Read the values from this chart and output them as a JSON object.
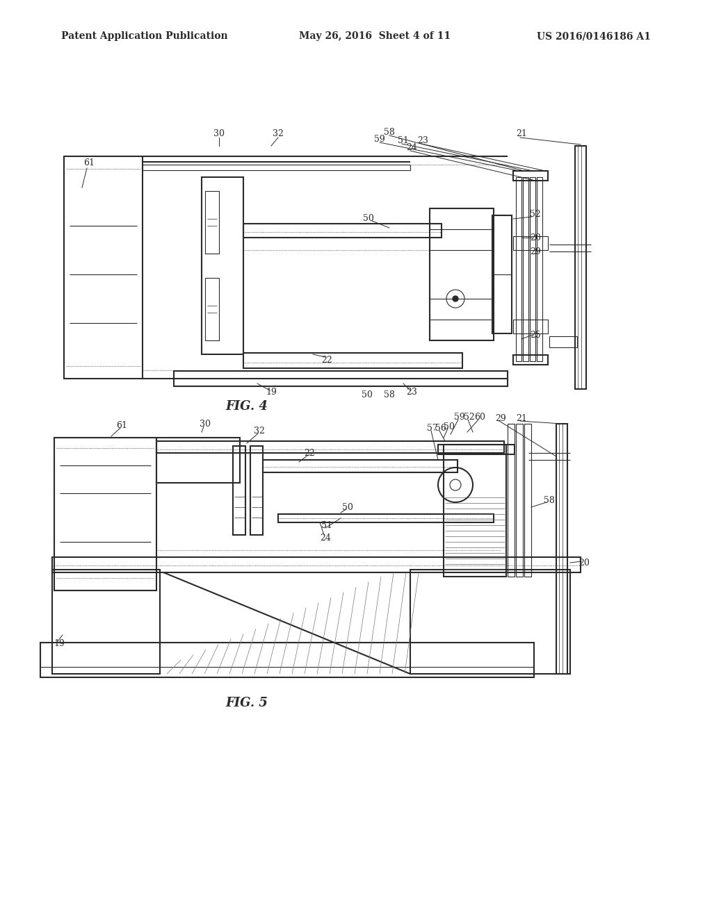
{
  "bg_color": "#ffffff",
  "line_color": "#2a2a2a",
  "lw_main": 1.5,
  "lw_thin": 0.8,
  "lw_dot": 0.6,
  "header_left": "Patent Application Publication",
  "header_center": "May 26, 2016  Sheet 4 of 11",
  "header_right": "US 2016/0146186 A1",
  "fig4_label": "FIG. 4",
  "fig5_label": "FIG. 5",
  "label_fs": 9,
  "header_fs": 10,
  "caption_fs": 13
}
